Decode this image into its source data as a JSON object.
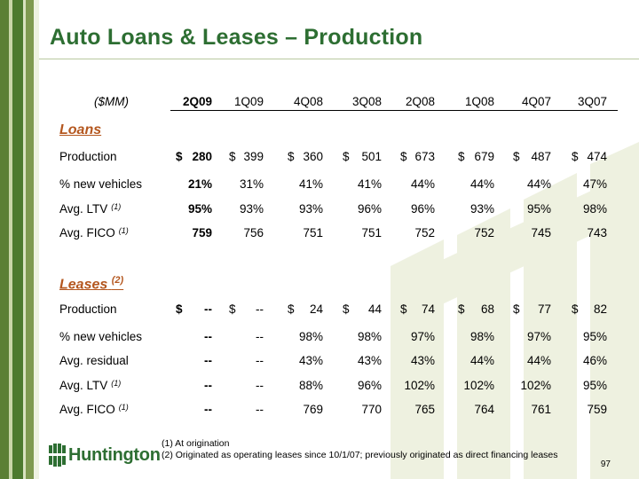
{
  "title": "Auto Loans & Leases – Production",
  "units_label": "($MM)",
  "columns": [
    "2Q09",
    "1Q09",
    "4Q08",
    "3Q08",
    "2Q08",
    "1Q08",
    "4Q07",
    "3Q07"
  ],
  "loans": {
    "heading": "Loans",
    "rows": [
      {
        "label": "Production",
        "fn": "",
        "values": [
          "280",
          "399",
          "360",
          "501",
          "673",
          "679",
          "487",
          "474"
        ],
        "dollar": true
      },
      {
        "label": "% new vehicles",
        "fn": "",
        "values": [
          "21%",
          "31%",
          "41%",
          "41%",
          "44%",
          "44%",
          "44%",
          "47%"
        ]
      },
      {
        "label": "Avg. LTV",
        "fn": "(1)",
        "values": [
          "95%",
          "93%",
          "93%",
          "96%",
          "96%",
          "93%",
          "95%",
          "98%"
        ]
      },
      {
        "label": "Avg. FICO",
        "fn": "(1)",
        "values": [
          "759",
          "756",
          "751",
          "751",
          "752",
          "752",
          "745",
          "743"
        ]
      }
    ]
  },
  "leases": {
    "heading": "Leases",
    "heading_fn": "(2)",
    "rows": [
      {
        "label": "Production",
        "fn": "",
        "values": [
          "--",
          "--",
          "24",
          "44",
          "74",
          "68",
          "77",
          "82"
        ],
        "dollar": true
      },
      {
        "label": "% new vehicles",
        "fn": "",
        "values": [
          "--",
          "--",
          "98%",
          "98%",
          "97%",
          "98%",
          "97%",
          "95%"
        ]
      },
      {
        "label": "Avg. residual",
        "fn": "",
        "values": [
          "--",
          "--",
          "43%",
          "43%",
          "43%",
          "44%",
          "44%",
          "46%"
        ]
      },
      {
        "label": "Avg. LTV",
        "fn": "(1)",
        "values": [
          "--",
          "--",
          "88%",
          "96%",
          "102%",
          "102%",
          "102%",
          "95%"
        ]
      },
      {
        "label": "Avg. FICO",
        "fn": "(1)",
        "values": [
          "--",
          "--",
          "769",
          "770",
          "765",
          "764",
          "761",
          "759"
        ]
      }
    ]
  },
  "currency_symbol": "$",
  "footnotes": [
    "(1)  At origination",
    "(2)  Originated as operating leases since 10/1/07; previously originated as direct financing leases"
  ],
  "logo_text": "Huntington",
  "page_number": "97",
  "colors": {
    "title": "#2d6e32",
    "section": "#b4571f",
    "watermark": "#ecf0dd"
  }
}
